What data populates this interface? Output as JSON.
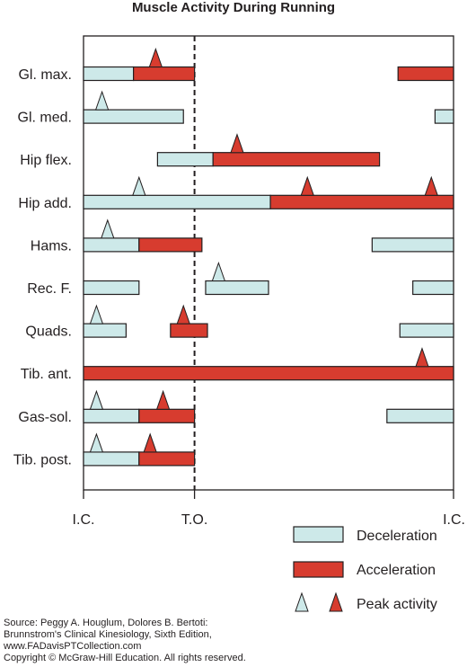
{
  "chart_data": {
    "type": "gantt",
    "title": "Muscle Activity During Running",
    "x_ticks": [
      {
        "pos": 0,
        "label": "I.C."
      },
      {
        "pos": 30,
        "label": "T.O."
      },
      {
        "pos": 100,
        "label": "I.C."
      }
    ],
    "toe_off_line": 30,
    "xlim": [
      0,
      100
    ],
    "muscles": [
      {
        "name": "Gl. max.",
        "deceleration": [
          [
            0,
            13.5
          ]
        ],
        "acceleration": [
          [
            13.5,
            30
          ],
          [
            85,
            100
          ]
        ],
        "peaks": [
          {
            "x": 19.5,
            "kind": "acceleration"
          }
        ]
      },
      {
        "name": "Gl. med.",
        "deceleration": [
          [
            0,
            27
          ],
          [
            95,
            100
          ]
        ],
        "acceleration": [],
        "peaks": [
          {
            "x": 5,
            "kind": "deceleration"
          }
        ]
      },
      {
        "name": "Hip flex.",
        "deceleration": [
          [
            20,
            35
          ]
        ],
        "acceleration": [
          [
            35,
            80
          ]
        ],
        "peaks": [
          {
            "x": 41.5,
            "kind": "acceleration"
          }
        ]
      },
      {
        "name": "Hip add.",
        "deceleration": [
          [
            0,
            50.5
          ]
        ],
        "acceleration": [
          [
            50.5,
            100
          ]
        ],
        "peaks": [
          {
            "x": 15,
            "kind": "deceleration"
          },
          {
            "x": 60.5,
            "kind": "acceleration"
          },
          {
            "x": 94,
            "kind": "acceleration"
          }
        ]
      },
      {
        "name": "Hams.",
        "deceleration": [
          [
            0,
            15
          ],
          [
            78,
            100
          ]
        ],
        "acceleration": [
          [
            15,
            32
          ]
        ],
        "peaks": [
          {
            "x": 6.5,
            "kind": "deceleration"
          }
        ]
      },
      {
        "name": "Rec. F.",
        "deceleration": [
          [
            0,
            15
          ],
          [
            33,
            50
          ],
          [
            89,
            100
          ]
        ],
        "acceleration": [],
        "peaks": [
          {
            "x": 36.5,
            "kind": "deceleration"
          }
        ]
      },
      {
        "name": "Quads.",
        "deceleration": [
          [
            0,
            11.5
          ],
          [
            85.5,
            100
          ]
        ],
        "acceleration": [
          [
            23.5,
            33.5
          ]
        ],
        "peaks": [
          {
            "x": 3.5,
            "kind": "deceleration"
          },
          {
            "x": 27,
            "kind": "acceleration"
          }
        ]
      },
      {
        "name": "Tib. ant.",
        "deceleration": [],
        "acceleration": [
          [
            0,
            100
          ]
        ],
        "peaks": [
          {
            "x": 91.5,
            "kind": "acceleration"
          }
        ]
      },
      {
        "name": "Gas-sol.",
        "deceleration": [
          [
            0,
            15
          ],
          [
            82,
            100
          ]
        ],
        "acceleration": [
          [
            15,
            30
          ]
        ],
        "peaks": [
          {
            "x": 3.5,
            "kind": "deceleration"
          },
          {
            "x": 21.5,
            "kind": "acceleration"
          }
        ]
      },
      {
        "name": "Tib. post.",
        "deceleration": [
          [
            0,
            15
          ]
        ],
        "acceleration": [
          [
            15,
            30
          ]
        ],
        "peaks": [
          {
            "x": 3.5,
            "kind": "deceleration"
          },
          {
            "x": 18,
            "kind": "acceleration"
          }
        ]
      }
    ],
    "legend": {
      "position": "bottom-right",
      "deceleration": "Deceleration",
      "acceleration": "Acceleration",
      "peak": "Peak activity"
    },
    "colors": {
      "deceleration": "#cde9e9",
      "acceleration": "#d73c2f",
      "outline": "#231f20"
    }
  },
  "source": {
    "line1": "Source: Peggy A. Houglum, Dolores B. Bertoti:",
    "line2": "Brunnstrom's Clinical Kinesiology, Sixth Edition,",
    "line3": "www.FADavisPTCollection.com",
    "line4": "Copyright © McGraw-Hill Education. All rights reserved."
  }
}
